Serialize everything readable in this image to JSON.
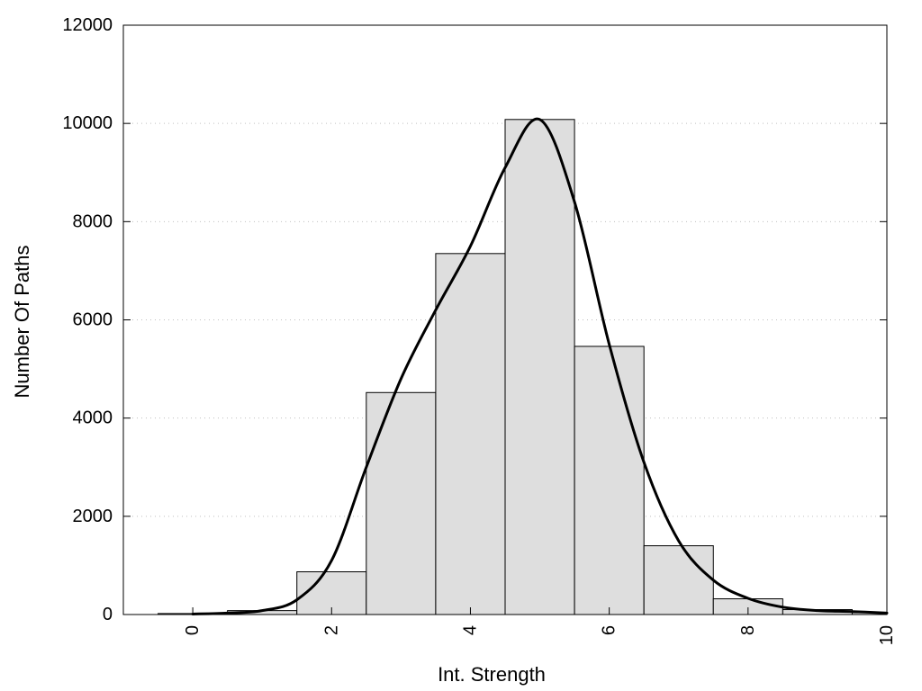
{
  "chart_data": {
    "type": "bar",
    "xlabel": "Int. Strength",
    "ylabel": "Number Of Paths",
    "xlim": [
      -1,
      10
    ],
    "ylim": [
      0,
      12000
    ],
    "xticks": [
      0,
      2,
      4,
      6,
      8,
      10
    ],
    "yticks": [
      0,
      2000,
      4000,
      6000,
      8000,
      10000,
      12000
    ],
    "grid": "horizontal dotted",
    "bin_width": 1,
    "bins": [
      {
        "x": 0,
        "value": 20
      },
      {
        "x": 1,
        "value": 80
      },
      {
        "x": 2,
        "value": 870
      },
      {
        "x": 3,
        "value": 4520
      },
      {
        "x": 4,
        "value": 7350
      },
      {
        "x": 5,
        "value": 10080
      },
      {
        "x": 6,
        "value": 5460
      },
      {
        "x": 7,
        "value": 1400
      },
      {
        "x": 8,
        "value": 320
      },
      {
        "x": 9,
        "value": 100
      },
      {
        "x": 10,
        "value": 40
      }
    ],
    "curve": {
      "type": "line",
      "x": [
        0,
        0.5,
        1,
        1.5,
        2,
        2.5,
        3,
        3.5,
        4,
        4.5,
        5,
        5.5,
        6,
        6.5,
        7,
        7.5,
        8,
        8.5,
        9,
        9.5,
        10
      ],
      "y": [
        10,
        30,
        80,
        300,
        1100,
        3000,
        4800,
        6200,
        7500,
        9100,
        10080,
        8400,
        5500,
        3100,
        1500,
        700,
        330,
        150,
        80,
        60,
        30
      ]
    }
  }
}
